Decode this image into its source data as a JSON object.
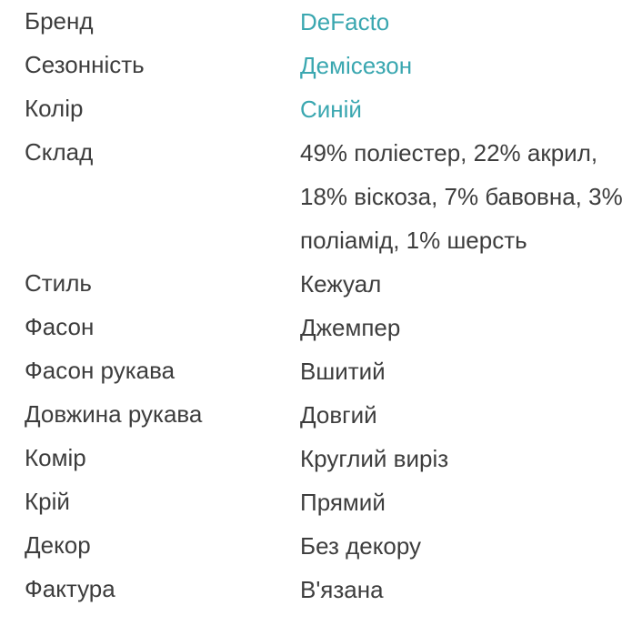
{
  "specs": {
    "rows": [
      {
        "label": "Бренд",
        "value": "DeFacto",
        "link": true
      },
      {
        "label": "Сезонність",
        "value": "Демісезон",
        "link": true
      },
      {
        "label": "Колір",
        "value": "Синій",
        "link": true
      },
      {
        "label": "Склад",
        "value": "49% поліестер, 22% акрил, 18% віскоза, 7% бавовна, 3% поліамід, 1% шерсть",
        "link": false
      },
      {
        "label": "Стиль",
        "value": "Кежуал",
        "link": false
      },
      {
        "label": "Фасон",
        "value": "Джемпер",
        "link": false
      },
      {
        "label": "Фасон рукава",
        "value": "Вшитий",
        "link": false
      },
      {
        "label": "Довжина рукава",
        "value": "Довгий",
        "link": false
      },
      {
        "label": "Комір",
        "value": "Круглий виріз",
        "link": false
      },
      {
        "label": "Крій",
        "value": "Прямий",
        "link": false
      },
      {
        "label": "Декор",
        "value": "Без декору",
        "link": false
      },
      {
        "label": "Фактура",
        "value": "В'язана",
        "link": false
      }
    ]
  },
  "colors": {
    "text": "#3d3d3d",
    "link": "#3aa7b0",
    "background": "#ffffff"
  }
}
